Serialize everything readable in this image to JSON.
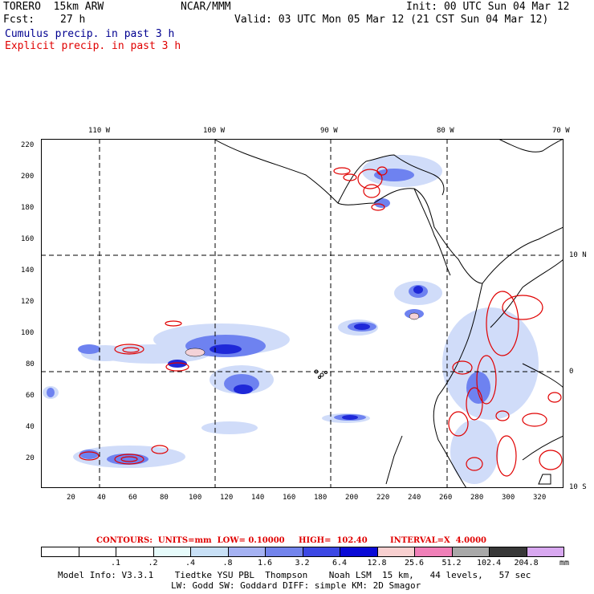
{
  "header": {
    "model": "TORERO  15km ARW",
    "org": "NCAR/MMM",
    "init": "Init: 00 UTC Sun 04 Mar 12",
    "fcst_label": "Fcst:",
    "fcst_value": "27 h",
    "valid": "Valid: 03 UTC Mon 05 Mar 12 (21 CST Sun 04 Mar 12)",
    "cumulus": "Cumulus precip. in past 3 h",
    "explicit": "Explicit precip. in past 3 h"
  },
  "map": {
    "lon_labels": [
      "110 W",
      "100 W",
      "90 W",
      "80 W",
      "70 W"
    ],
    "lat_labels": [
      "10 N",
      "0",
      "10 S"
    ],
    "y_ticks": [
      "220",
      "200",
      "180",
      "160",
      "140",
      "120",
      "100",
      "80",
      "60",
      "40",
      "20"
    ],
    "x_ticks": [
      "20",
      "40",
      "60",
      "80",
      "100",
      "120",
      "140",
      "160",
      "180",
      "200",
      "220",
      "240",
      "260",
      "280",
      "300",
      "320"
    ],
    "colors": {
      "coast": "#000000",
      "grid": "#000000",
      "contour": "#e00000",
      "light_blue": "#c8d6f8",
      "mid_blue": "#6e82f0",
      "deep_blue": "#1e28d8",
      "pink": "#f4d2d8"
    }
  },
  "contour_text": {
    "contours": "CONTOURS:  UNITS=mm  LOW= 0.10000",
    "high": "HIGH=  102.40",
    "interval": "INTERVAL=X  4.0000"
  },
  "colorbar": {
    "colors": [
      "#ffffff",
      "#ffffff",
      "#ffffff",
      "#e6fbfb",
      "#c8e0f6",
      "#a5b2f2",
      "#7384ec",
      "#3c48e4",
      "#0a0ad6",
      "#f8d0d0",
      "#f080b8",
      "#a8a8a8",
      "#383838",
      "#d8a8f0"
    ],
    "labels": [
      ".1",
      ".2",
      ".4",
      ".8",
      "1.6",
      "3.2",
      "6.4",
      "12.8",
      "25.6",
      "51.2",
      "102.4",
      "204.8"
    ],
    "units": "mm"
  },
  "footer": {
    "line1": "Model Info: V3.3.1    Tiedtke YSU PBL  Thompson    Noah LSM  15 km,   44 levels,   57 sec",
    "line2": "LW: Godd SW: Goddard DIFF: simple KM: 2D Smagor"
  }
}
